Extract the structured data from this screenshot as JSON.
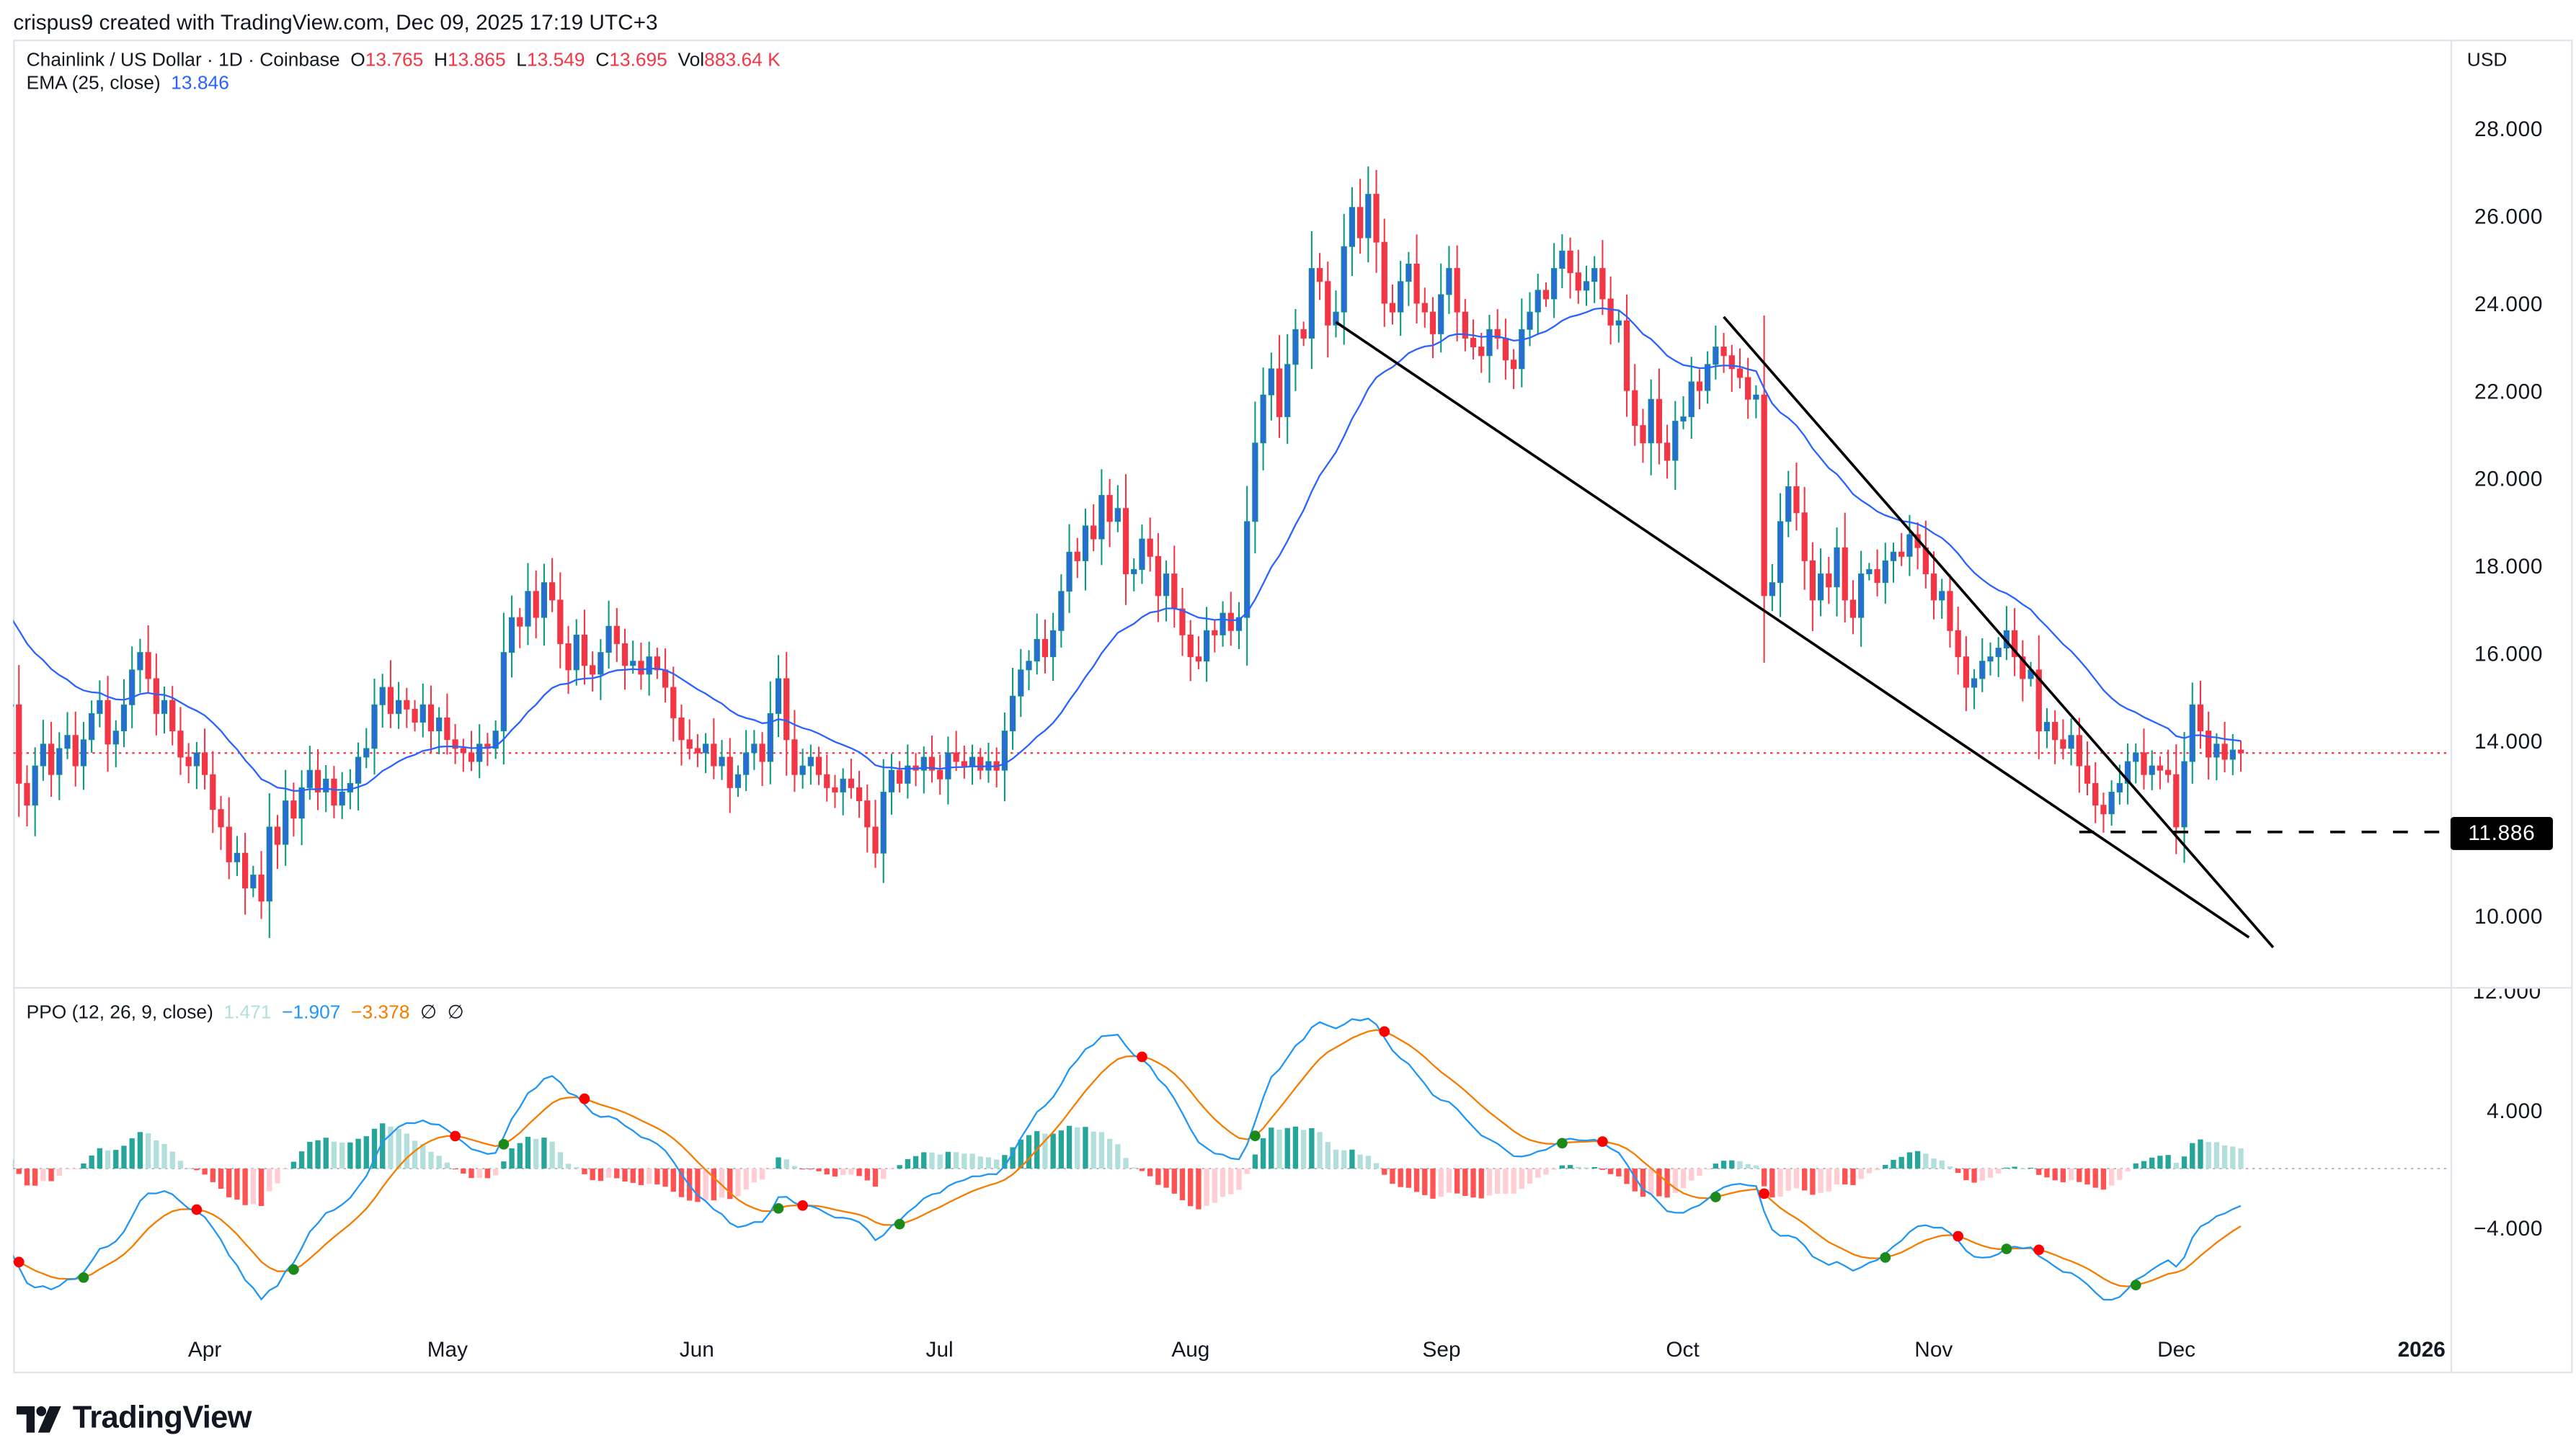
{
  "credit": "crispus9 created with TradingView.com, Dec 09, 2025 17:19 UTC+3",
  "legend": {
    "symbol": "Chainlink / US Dollar · 1D · Coinbase",
    "o_label": "O",
    "o": "13.765",
    "h_label": "H",
    "h": "13.865",
    "l_label": "L",
    "l": "13.549",
    "c_label": "C",
    "c": "13.695",
    "vol_label": "Vol",
    "vol": "883.64 K",
    "ema_label": "EMA (25, close)",
    "ema": "13.846"
  },
  "ppo_legend": {
    "label": "PPO (12, 26, 9, close)",
    "histogram": "1.471",
    "ppo": "−1.907",
    "signal": "−3.378",
    "na1": "∅",
    "na2": "∅"
  },
  "currency": "USD",
  "price_axis": [
    "28.000",
    "26.000",
    "24.000",
    "22.000",
    "20.000",
    "18.000",
    "16.000",
    "14.000",
    "10.000"
  ],
  "price_tag": "11.886",
  "ppo_axis": {
    "top_cut": "12.000",
    "labels": [
      "4.000",
      "−4.000"
    ]
  },
  "time_axis": [
    "Apr",
    "May",
    "Jun",
    "Jul",
    "Aug",
    "Sep",
    "Oct",
    "Nov",
    "Dec",
    "2026"
  ],
  "logo": "TradingView",
  "colors": {
    "up_body": "#2a6bd6",
    "up_wick": "#089981",
    "down": "#f23645",
    "ema": "#2962ff",
    "ppo": "#2196f3",
    "signal": "#f57c00",
    "hist_up_strong": "#26a69a",
    "hist_up_weak": "#b2dfdb",
    "hist_down_strong": "#ff5252",
    "hist_down_weak": "#ffcdd2",
    "cross_up": "#1b8a1b",
    "cross_down": "#ff0000",
    "last_price": "#f23645"
  },
  "chart_data": {
    "type": "candlestick",
    "interval": "1D",
    "price_range": [
      9.0,
      28.5
    ],
    "ppo_range": [
      -11,
      12.2
    ],
    "last_price": 13.695,
    "ema25_start": 16.8,
    "ppo_start": -5.6,
    "signal_start": -6.2,
    "daily_close": {
      "from": "2025-03-08",
      "to": "2025-12-09",
      "values": [
        14.8,
        13.0,
        12.5,
        13.4,
        13.9,
        13.2,
        13.8,
        14.1,
        13.4,
        14.0,
        14.6,
        14.9,
        13.9,
        14.2,
        14.8,
        15.6,
        16.0,
        15.4,
        14.6,
        14.9,
        14.2,
        13.6,
        13.4,
        13.7,
        13.2,
        12.4,
        12.0,
        11.2,
        11.4,
        10.6,
        10.9,
        10.3,
        12.0,
        11.6,
        12.6,
        12.2,
        12.9,
        13.3,
        12.8,
        13.1,
        12.5,
        12.8,
        13.0,
        13.6,
        13.8,
        14.8,
        15.2,
        14.6,
        14.9,
        14.7,
        14.4,
        14.8,
        14.2,
        14.5,
        14.0,
        13.8,
        13.7,
        13.5,
        13.9,
        13.8,
        14.2,
        16.0,
        16.8,
        16.6,
        17.4,
        16.8,
        17.6,
        17.2,
        16.2,
        15.6,
        16.4,
        15.7,
        15.5,
        16.0,
        16.6,
        16.2,
        15.7,
        15.8,
        15.5,
        15.9,
        15.6,
        15.2,
        14.5,
        14.0,
        13.8,
        13.7,
        13.9,
        13.4,
        13.6,
        12.9,
        13.2,
        13.7,
        13.9,
        13.5,
        14.6,
        15.4,
        14.0,
        13.2,
        13.4,
        13.6,
        13.2,
        12.9,
        12.8,
        13.1,
        12.9,
        12.6,
        12.0,
        11.4,
        12.8,
        13.3,
        13.0,
        13.4,
        13.3,
        13.6,
        13.3,
        13.1,
        13.7,
        13.5,
        13.4,
        13.6,
        13.3,
        13.5,
        13.3,
        14.2,
        15.0,
        15.6,
        15.8,
        16.3,
        15.9,
        16.5,
        17.4,
        18.3,
        18.1,
        18.9,
        18.6,
        19.6,
        19.0,
        19.3,
        17.8,
        17.9,
        18.6,
        18.2,
        17.3,
        17.8,
        17.0,
        16.4,
        15.9,
        15.8,
        16.5,
        16.4,
        16.9,
        16.5,
        16.8,
        19.0,
        20.8,
        21.9,
        22.5,
        21.4,
        22.6,
        23.4,
        23.2,
        24.8,
        24.5,
        23.5,
        23.8,
        25.3,
        26.2,
        25.5,
        26.5,
        25.4,
        24.0,
        23.8,
        24.5,
        24.9,
        24.0,
        23.8,
        23.3,
        24.2,
        24.8,
        23.8,
        23.2,
        23.0,
        22.8,
        23.4,
        23.2,
        22.7,
        22.5,
        23.4,
        23.8,
        24.3,
        24.1,
        24.8,
        25.2,
        24.7,
        24.3,
        24.5,
        24.8,
        24.1,
        23.5,
        23.6,
        22.0,
        21.2,
        20.8,
        21.8,
        20.8,
        20.4,
        21.3,
        21.4,
        22.2,
        22.0,
        22.6,
        23.0,
        22.8,
        22.5,
        22.3,
        21.8,
        21.9,
        17.3,
        17.6,
        19.0,
        19.8,
        19.2,
        18.1,
        17.2,
        17.8,
        17.5,
        18.4,
        17.2,
        16.8,
        17.8,
        17.9,
        17.6,
        18.1,
        18.3,
        18.2,
        18.7,
        18.4,
        17.8,
        17.2,
        17.4,
        16.5,
        15.9,
        15.2,
        15.4,
        15.8,
        15.9,
        16.1,
        16.5,
        15.9,
        15.4,
        15.6,
        14.2,
        14.4,
        14.0,
        13.8,
        14.1,
        13.4,
        13.0,
        12.5,
        12.3,
        12.8,
        13.0,
        13.5,
        13.7,
        13.2,
        13.4,
        13.3,
        13.2,
        12.0,
        13.5,
        14.8,
        14.2,
        13.6,
        13.9,
        13.55,
        13.765,
        13.695
      ]
    },
    "drawings": {
      "upper_trendline": [
        [
          "2025-10-06",
          23.69
        ],
        [
          "2025-12-13",
          9.24
        ]
      ],
      "lower_trendline": [
        [
          "2025-08-19",
          23.57
        ],
        [
          "2025-12-10",
          9.47
        ]
      ],
      "horizontal_level": {
        "price": 11.886,
        "from": "2025-11-19",
        "style": "dashed"
      }
    }
  }
}
